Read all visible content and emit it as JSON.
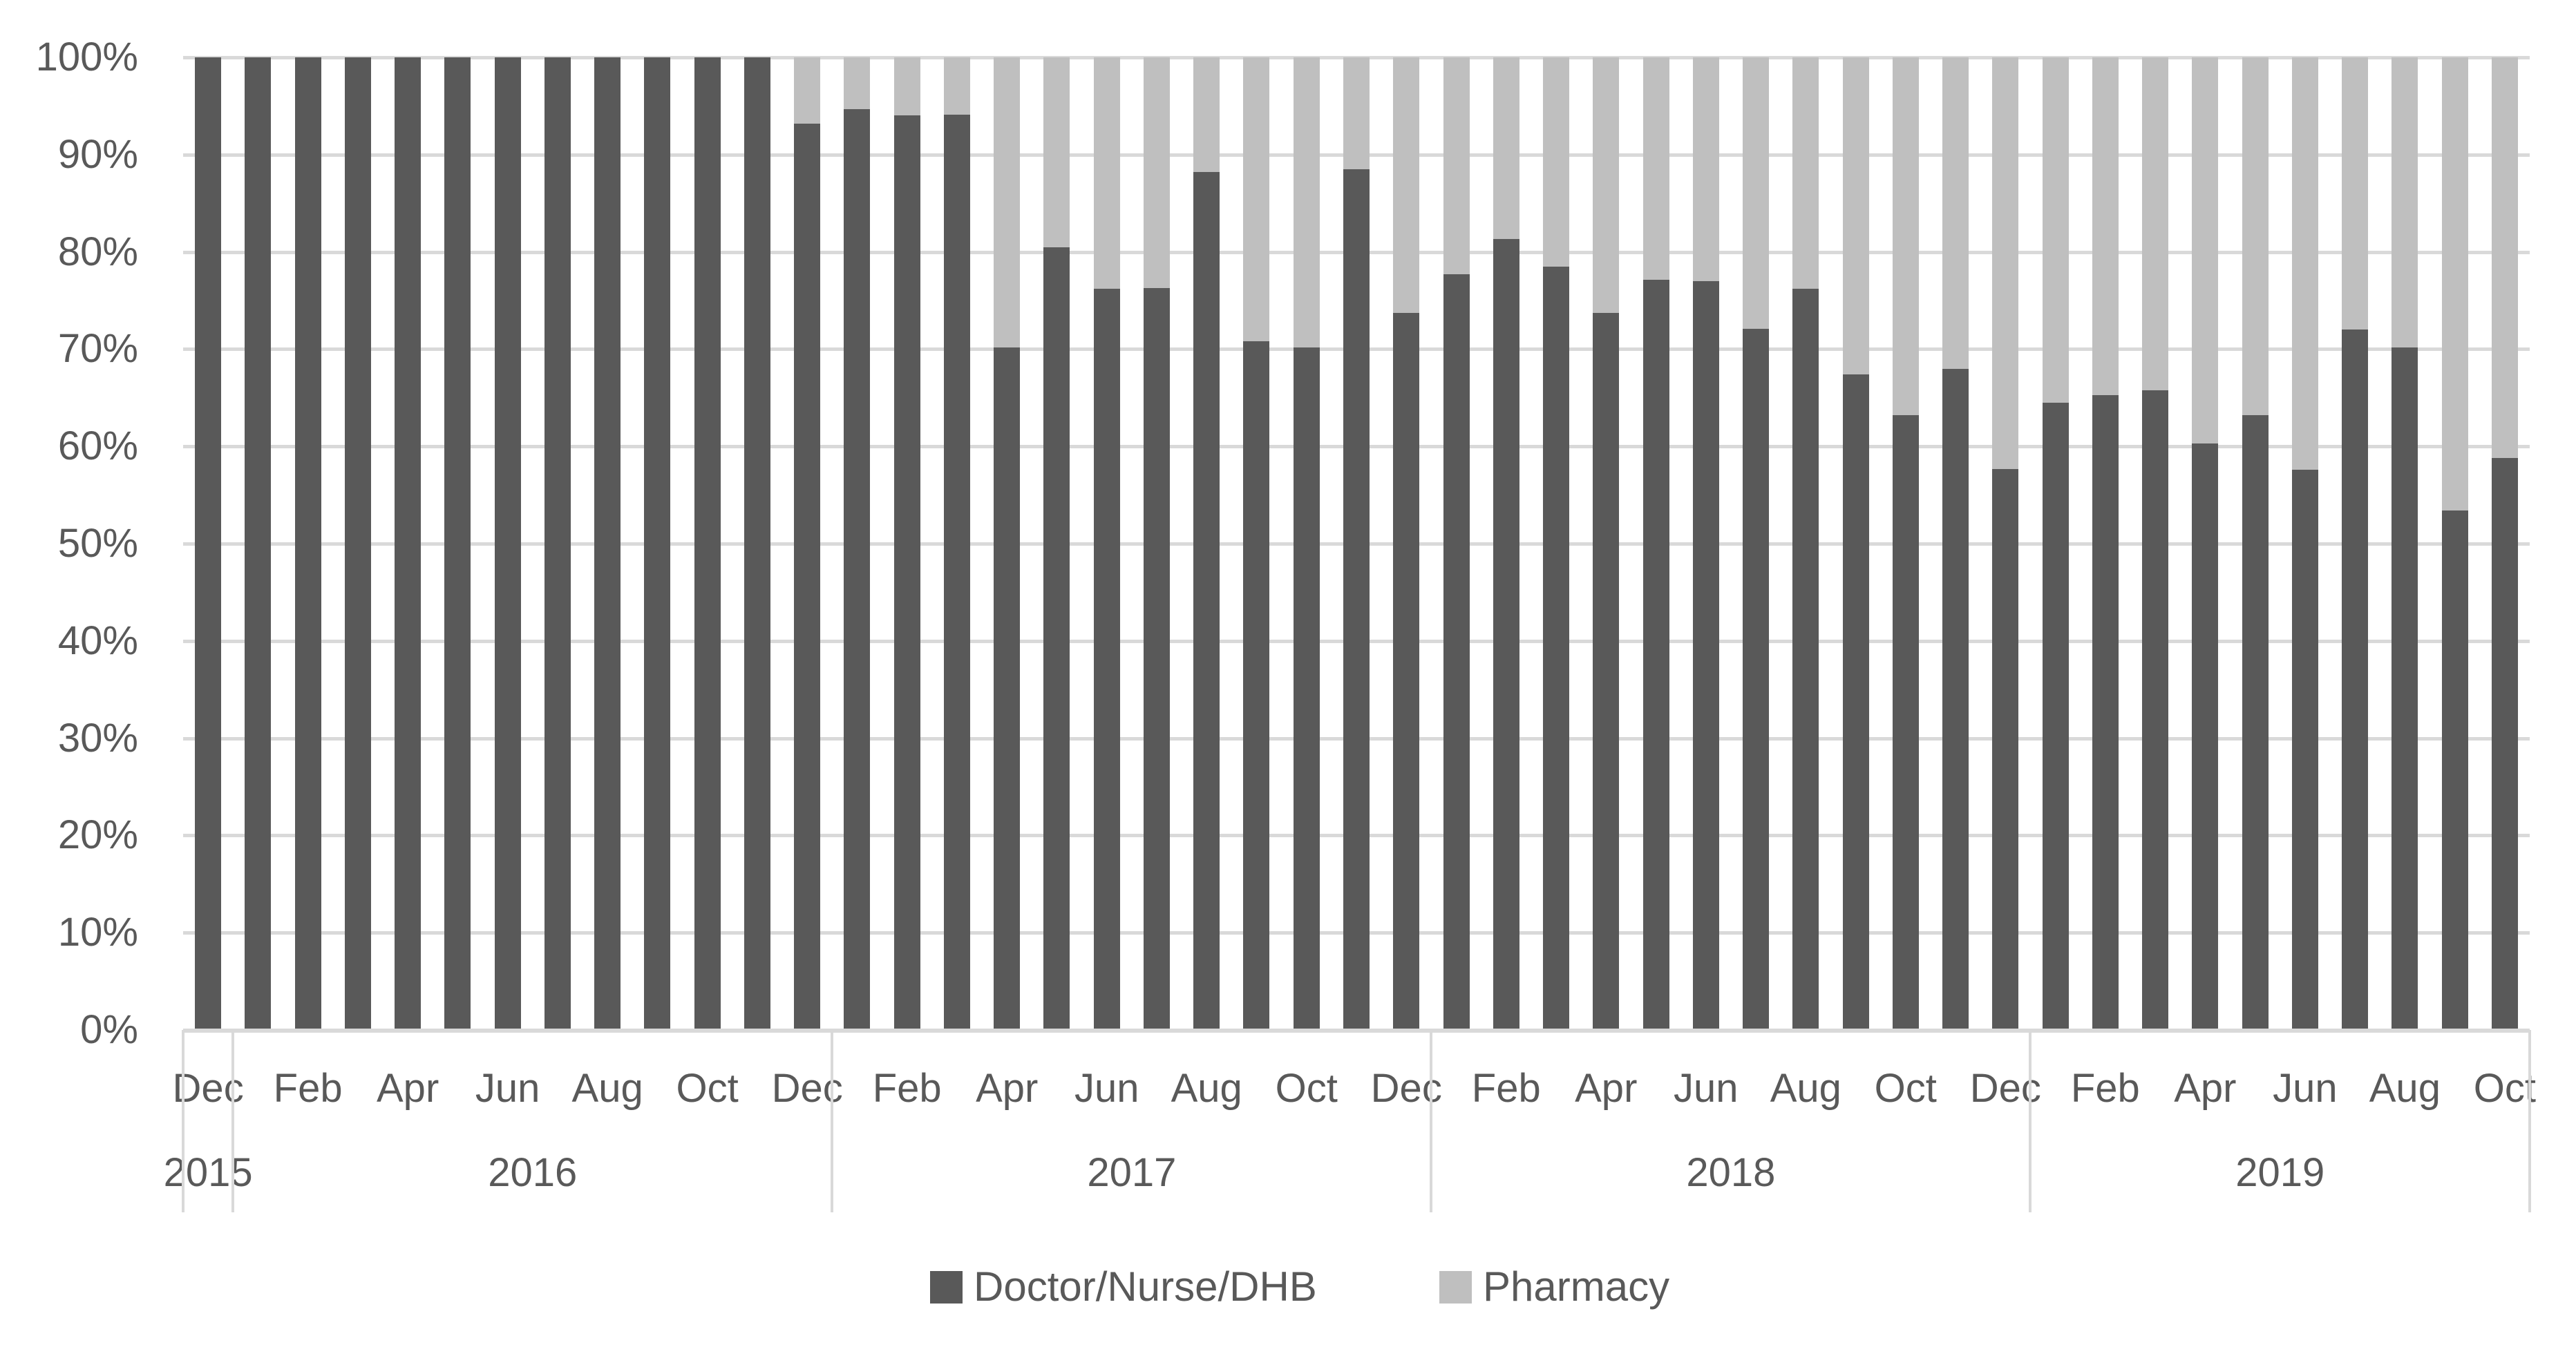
{
  "chart_data": {
    "type": "bar",
    "subtype": "stacked-100-percent-column",
    "title": "",
    "grid": true,
    "legend_position": "bottom",
    "colors": {
      "doctor_nurse_dhb": "#595959",
      "pharmacy": "#bfbfbf",
      "gridline": "#d9d9d9",
      "axis_text": "#595959",
      "background": "#ffffff"
    },
    "categories": [
      "Dec 2015",
      "Jan 2016",
      "Feb 2016",
      "Mar 2016",
      "Apr 2016",
      "May 2016",
      "Jun 2016",
      "Jul 2016",
      "Aug 2016",
      "Sep 2016",
      "Oct 2016",
      "Nov 2016",
      "Dec 2016",
      "Jan 2017",
      "Feb 2017",
      "Mar 2017",
      "Apr 2017",
      "May 2017",
      "Jun 2017",
      "Jul 2017",
      "Aug 2017",
      "Sep 2017",
      "Oct 2017",
      "Nov 2017",
      "Dec 2017",
      "Jan 2018",
      "Feb 2018",
      "Mar 2018",
      "Apr 2018",
      "May 2018",
      "Jun 2018",
      "Jul 2018",
      "Aug 2018",
      "Sep 2018",
      "Oct 2018",
      "Nov 2018",
      "Dec 2018",
      "Jan 2019",
      "Feb 2019",
      "Mar 2019",
      "Apr 2019",
      "May 2019",
      "Jun 2019",
      "Jul 2019",
      "Aug 2019",
      "Sep 2019",
      "Oct 2019"
    ],
    "series": [
      {
        "name": "Doctor/Nurse/DHB",
        "color": "#595959",
        "values": [
          100,
          100,
          100,
          100,
          100,
          100,
          100,
          100,
          100,
          100,
          100,
          100,
          93.2,
          94.7,
          94.0,
          94.1,
          70.2,
          80.5,
          76.2,
          76.3,
          88.2,
          70.8,
          70.2,
          88.5,
          73.7,
          77.7,
          81.3,
          78.5,
          73.7,
          77.1,
          77.0,
          72.1,
          76.2,
          67.4,
          63.2,
          68.0,
          57.7,
          64.5,
          65.3,
          65.8,
          60.3,
          63.2,
          57.6,
          72.0,
          70.2,
          53.4,
          58.8
        ]
      },
      {
        "name": "Pharmacy",
        "color": "#bfbfbf",
        "values": [
          0,
          0,
          0,
          0,
          0,
          0,
          0,
          0,
          0,
          0,
          0,
          0,
          6.8,
          5.3,
          6.0,
          5.9,
          29.8,
          19.5,
          23.8,
          23.7,
          11.8,
          29.2,
          29.8,
          11.5,
          26.3,
          22.3,
          18.7,
          21.5,
          26.3,
          22.9,
          23.0,
          27.9,
          23.8,
          32.6,
          36.8,
          32.0,
          42.3,
          35.5,
          34.7,
          34.2,
          39.7,
          36.8,
          42.4,
          28.0,
          29.8,
          46.6,
          41.2
        ]
      }
    ],
    "y_axis": {
      "min": 0,
      "max": 100,
      "tick_step": 10,
      "tick_labels": [
        "0%",
        "10%",
        "20%",
        "30%",
        "40%",
        "50%",
        "60%",
        "70%",
        "80%",
        "90%",
        "100%"
      ]
    },
    "x_axis": {
      "month_tick_labels": [
        "Dec",
        "Feb",
        "Apr",
        "Jun",
        "Aug",
        "Oct",
        "Dec",
        "Feb",
        "Apr",
        "Jun",
        "Aug",
        "Oct",
        "Dec",
        "Feb",
        "Apr",
        "Jun",
        "Aug",
        "Oct",
        "Dec",
        "Feb",
        "Apr",
        "Jun",
        "Aug",
        "Oct"
      ],
      "month_tick_category_indices": [
        0,
        2,
        4,
        6,
        8,
        10,
        12,
        14,
        16,
        18,
        20,
        22,
        24,
        26,
        28,
        30,
        32,
        34,
        36,
        38,
        40,
        42,
        44,
        46
      ],
      "year_groups": [
        {
          "label": "2015",
          "start_index": 0,
          "month_count": 1
        },
        {
          "label": "2016",
          "start_index": 1,
          "month_count": 12
        },
        {
          "label": "2017",
          "start_index": 13,
          "month_count": 12
        },
        {
          "label": "2018",
          "start_index": 25,
          "month_count": 12
        },
        {
          "label": "2019",
          "start_index": 37,
          "month_count": 10
        }
      ]
    },
    "legend": {
      "items": [
        {
          "label": "Doctor/Nurse/DHB",
          "color": "#595959"
        },
        {
          "label": "Pharmacy",
          "color": "#bfbfbf"
        }
      ]
    }
  }
}
